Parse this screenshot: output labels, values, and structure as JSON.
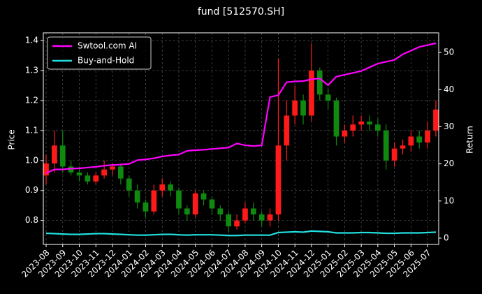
{
  "chart_data": {
    "type": "candlestick",
    "title": "fund [512570.SH]",
    "ylabel": "Price",
    "y2label": "Return",
    "grid": true,
    "legend": "upper left",
    "up_color": "#ff1a1a",
    "down_color": "#0f8a0f",
    "x": [
      0,
      0.5,
      1,
      1.5,
      2,
      2.5,
      3,
      3.5,
      4,
      4.5,
      5,
      5.5,
      6,
      6.5,
      7,
      7.5,
      8,
      8.5,
      9,
      9.5,
      10,
      10.5,
      11,
      11.5,
      12,
      12.5,
      13,
      13.5,
      14,
      14.5,
      15,
      15.5,
      16,
      16.5,
      17,
      17.5,
      18,
      18.5,
      19,
      19.5,
      20,
      20.5,
      21,
      21.5,
      22,
      22.5,
      23,
      23.5
    ],
    "open": [
      0.95,
      0.99,
      1.05,
      0.98,
      0.96,
      0.95,
      0.93,
      0.95,
      0.97,
      0.98,
      0.94,
      0.9,
      0.86,
      0.83,
      0.9,
      0.92,
      0.9,
      0.84,
      0.82,
      0.89,
      0.87,
      0.84,
      0.82,
      0.78,
      0.8,
      0.84,
      0.82,
      0.8,
      0.82,
      1.05,
      1.15,
      1.2,
      1.15,
      1.3,
      1.22,
      1.2,
      1.08,
      1.1,
      1.12,
      1.13,
      1.12,
      1.1,
      1.0,
      1.04,
      1.05,
      1.08,
      1.06,
      1.1
    ],
    "high": [
      1.02,
      1.1,
      1.1,
      1.0,
      0.98,
      0.96,
      0.96,
      1.0,
      0.99,
      0.99,
      0.95,
      0.92,
      0.87,
      0.92,
      0.94,
      0.93,
      0.91,
      0.85,
      0.9,
      0.9,
      0.88,
      0.85,
      0.83,
      0.82,
      0.86,
      0.86,
      0.83,
      0.84,
      1.34,
      1.2,
      1.25,
      1.22,
      1.39,
      1.31,
      1.24,
      1.21,
      1.12,
      1.15,
      1.15,
      1.15,
      1.14,
      1.12,
      1.06,
      1.07,
      1.1,
      1.1,
      1.13,
      1.2
    ],
    "low": [
      0.92,
      0.96,
      0.96,
      0.95,
      0.93,
      0.92,
      0.92,
      0.94,
      0.95,
      0.92,
      0.88,
      0.84,
      0.81,
      0.82,
      0.88,
      0.88,
      0.82,
      0.8,
      0.81,
      0.85,
      0.82,
      0.8,
      0.76,
      0.77,
      0.79,
      0.8,
      0.78,
      0.78,
      0.8,
      1.0,
      1.12,
      1.12,
      1.13,
      1.2,
      1.17,
      1.05,
      1.06,
      1.08,
      1.1,
      1.1,
      1.08,
      0.97,
      0.98,
      1.02,
      1.03,
      1.04,
      1.04,
      1.08
    ],
    "close": [
      0.99,
      1.05,
      0.98,
      0.96,
      0.95,
      0.93,
      0.95,
      0.97,
      0.98,
      0.94,
      0.9,
      0.86,
      0.83,
      0.9,
      0.92,
      0.9,
      0.84,
      0.82,
      0.89,
      0.87,
      0.84,
      0.82,
      0.78,
      0.8,
      0.84,
      0.82,
      0.8,
      0.82,
      1.05,
      1.15,
      1.2,
      1.15,
      1.3,
      1.22,
      1.2,
      1.08,
      1.1,
      1.12,
      1.13,
      1.12,
      1.1,
      1.0,
      1.04,
      1.05,
      1.08,
      1.06,
      1.1,
      1.17
    ],
    "series": [
      {
        "name": "Swtool.com AI",
        "color": "#ff00ff",
        "axis": "y2",
        "values": [
          17.5,
          18.5,
          18.5,
          18.7,
          18.8,
          19,
          19.2,
          19.5,
          19.7,
          19.8,
          20,
          21,
          21.2,
          21.5,
          22,
          22.3,
          22.5,
          23.5,
          23.7,
          23.8,
          24,
          24.2,
          24.4,
          25.5,
          25,
          24.8,
          25,
          38,
          38.5,
          42,
          42.2,
          42.3,
          42.8,
          43,
          41.2,
          43.5,
          44,
          44.5,
          45,
          46,
          47,
          47.5,
          48,
          49.5,
          50.5,
          51.5,
          52,
          52.5
        ]
      },
      {
        "name": "Buy-and-Hold",
        "color": "#22e0e0",
        "axis": "y2",
        "values": [
          1.3,
          1.2,
          1.1,
          1.0,
          1.0,
          1.1,
          1.2,
          1.2,
          1.1,
          1.0,
          0.9,
          0.8,
          0.8,
          0.9,
          1.0,
          1.0,
          0.9,
          0.8,
          0.9,
          0.9,
          0.9,
          0.8,
          0.7,
          0.7,
          0.8,
          0.8,
          0.8,
          0.8,
          1.5,
          1.6,
          1.7,
          1.6,
          1.9,
          1.8,
          1.7,
          1.4,
          1.4,
          1.4,
          1.5,
          1.5,
          1.4,
          1.3,
          1.3,
          1.4,
          1.4,
          1.4,
          1.5,
          1.6
        ]
      }
    ],
    "xlim": [
      -0.17,
      23.67
    ],
    "ylim": [
      0.72,
      1.426
    ],
    "y2lim": [
      -1.7,
      55.3
    ],
    "yticks": [
      0.8,
      0.9,
      {
        "value": 1,
        "label": "1.0"
      },
      1.1,
      1.2,
      1.3,
      1.4
    ],
    "y2ticks": [
      0,
      10,
      20,
      30,
      40,
      50
    ],
    "xticks": [
      {
        "value": 0,
        "label": "2023-08"
      },
      {
        "value": 1,
        "label": "2023-09"
      },
      {
        "value": 2,
        "label": "2023-10"
      },
      {
        "value": 3,
        "label": "2023-11"
      },
      {
        "value": 4,
        "label": "2023-12"
      },
      {
        "value": 5,
        "label": "2024-01"
      },
      {
        "value": 6,
        "label": "2024-02"
      },
      {
        "value": 7,
        "label": "2024-03"
      },
      {
        "value": 8,
        "label": "2024-04"
      },
      {
        "value": 9,
        "label": "2024-05"
      },
      {
        "value": 10,
        "label": "2024-06"
      },
      {
        "value": 11,
        "label": "2024-07"
      },
      {
        "value": 12,
        "label": "2024-08"
      },
      {
        "value": 13,
        "label": "2024-09"
      },
      {
        "value": 14,
        "label": "2024-10"
      },
      {
        "value": 15,
        "label": "2024-11"
      },
      {
        "value": 16,
        "label": "2024-12"
      },
      {
        "value": 17,
        "label": "2025-01"
      },
      {
        "value": 18,
        "label": "2025-02"
      },
      {
        "value": 19,
        "label": "2025-03"
      },
      {
        "value": 20,
        "label": "2025-04"
      },
      {
        "value": 21,
        "label": "2025-05"
      },
      {
        "value": 22,
        "label": "2025-06"
      },
      {
        "value": 23,
        "label": "2025-07"
      }
    ]
  }
}
